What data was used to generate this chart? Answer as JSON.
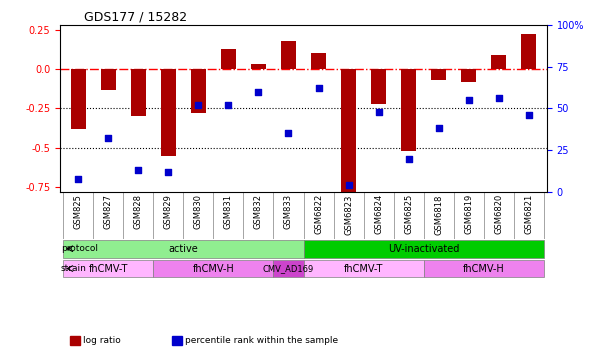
{
  "title": "GDS177 / 15282",
  "samples": [
    "GSM825",
    "GSM827",
    "GSM828",
    "GSM829",
    "GSM830",
    "GSM831",
    "GSM832",
    "GSM833",
    "GSM6822",
    "GSM6823",
    "GSM6824",
    "GSM6825",
    "GSM6818",
    "GSM6819",
    "GSM6820",
    "GSM6821"
  ],
  "log_ratio": [
    -0.38,
    -0.13,
    -0.3,
    -0.55,
    -0.28,
    0.13,
    0.03,
    0.18,
    0.1,
    -0.78,
    -0.22,
    -0.52,
    -0.07,
    -0.08,
    0.09,
    0.22
  ],
  "percentile": [
    8,
    32,
    13,
    12,
    52,
    52,
    60,
    35,
    62,
    4,
    48,
    20,
    38,
    55,
    56,
    46
  ],
  "ylim_left": [
    -0.78,
    0.28
  ],
  "ylim_right": [
    0,
    100
  ],
  "hline_y0": 0.0,
  "hline_y1": -0.25,
  "hline_y2": -0.5,
  "protocol_groups": [
    {
      "label": "active",
      "start": 0,
      "end": 7,
      "color": "#90EE90"
    },
    {
      "label": "UV-inactivated",
      "start": 8,
      "end": 15,
      "color": "#00CC00"
    }
  ],
  "strain_groups": [
    {
      "label": "fhCMV-T",
      "start": 0,
      "end": 2,
      "color": "#FFB6FF"
    },
    {
      "label": "fhCMV-H",
      "start": 3,
      "end": 6,
      "color": "#EE82EE"
    },
    {
      "label": "CMV_AD169",
      "start": 7,
      "end": 7,
      "color": "#CC44CC"
    },
    {
      "label": "fhCMV-T",
      "start": 8,
      "end": 11,
      "color": "#FFB6FF"
    },
    {
      "label": "fhCMV-H",
      "start": 12,
      "end": 15,
      "color": "#EE82EE"
    }
  ],
  "bar_color": "#AA0000",
  "dot_color": "#0000CC",
  "legend_items": [
    {
      "label": "log ratio",
      "color": "#AA0000"
    },
    {
      "label": "percentile rank within the sample",
      "color": "#0000CC"
    }
  ]
}
